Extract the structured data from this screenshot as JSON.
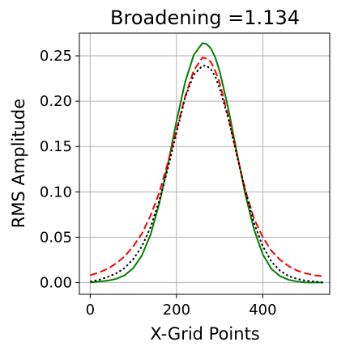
{
  "chart_data": {
    "type": "line",
    "title": "Broadening =1.134",
    "xlabel": "X-Grid Points",
    "ylabel": "RMS Amplitude",
    "xlim": [
      -25,
      555
    ],
    "ylim": [
      -0.013,
      0.275
    ],
    "xticks": [
      0,
      200,
      400
    ],
    "yticks": [
      0.0,
      0.05,
      0.1,
      0.15,
      0.2,
      0.25
    ],
    "ytick_labels": [
      "0.00",
      "0.05",
      "0.10",
      "0.15",
      "0.20",
      "0.25"
    ],
    "grid": true,
    "legend": "none",
    "x": [
      0,
      20,
      40,
      60,
      80,
      100,
      120,
      140,
      160,
      180,
      200,
      220,
      240,
      260,
      270,
      280,
      290,
      300,
      320,
      340,
      360,
      380,
      400,
      420,
      440,
      460,
      480,
      500,
      520,
      540
    ],
    "series": [
      {
        "color": "#008000",
        "line_style": "solid",
        "values": [
          0.0,
          0.001,
          0.002,
          0.004,
          0.008,
          0.016,
          0.03,
          0.053,
          0.087,
          0.13,
          0.178,
          0.221,
          0.251,
          0.264,
          0.263,
          0.258,
          0.248,
          0.233,
          0.192,
          0.143,
          0.096,
          0.058,
          0.031,
          0.015,
          0.007,
          0.003,
          0.001,
          0.0,
          0.0,
          0.0
        ]
      },
      {
        "color": "#ff0000",
        "line_style": "dashed",
        "values": [
          0.008,
          0.011,
          0.015,
          0.021,
          0.029,
          0.04,
          0.054,
          0.074,
          0.099,
          0.132,
          0.168,
          0.205,
          0.234,
          0.248,
          0.247,
          0.243,
          0.233,
          0.22,
          0.183,
          0.141,
          0.101,
          0.07,
          0.05,
          0.035,
          0.025,
          0.018,
          0.013,
          0.01,
          0.008,
          0.007
        ]
      },
      {
        "color": "#000000",
        "line_style": "dotted",
        "values": [
          0.001,
          0.003,
          0.006,
          0.01,
          0.016,
          0.026,
          0.04,
          0.061,
          0.09,
          0.126,
          0.165,
          0.204,
          0.229,
          0.239,
          0.239,
          0.235,
          0.227,
          0.214,
          0.181,
          0.14,
          0.1,
          0.065,
          0.04,
          0.023,
          0.013,
          0.007,
          0.004,
          0.002,
          0.001,
          0.0
        ]
      }
    ]
  }
}
